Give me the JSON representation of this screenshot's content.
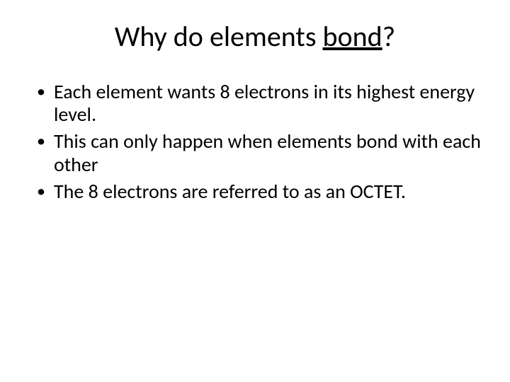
{
  "slide": {
    "title_prefix": "Why do elements ",
    "title_underlined": "bond",
    "title_suffix": "?",
    "bullets": [
      "Each element wants 8 electrons in its highest energy level.",
      "This can only happen when elements bond with each other",
      "The 8 electrons are referred to as an OCTET."
    ]
  },
  "style": {
    "background_color": "#ffffff",
    "text_color": "#000000",
    "title_fontsize": 40,
    "body_fontsize": 28,
    "font_family": "Calibri"
  }
}
